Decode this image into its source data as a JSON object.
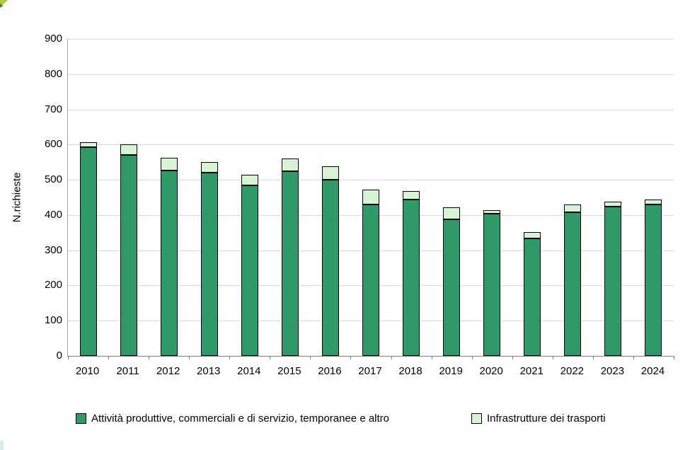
{
  "chart_data": {
    "type": "bar",
    "stacked": true,
    "title": "",
    "ylabel": "N.richieste",
    "xlabel": "",
    "ylim": [
      0,
      900
    ],
    "ytick_step": 100,
    "yticks": [
      "900",
      "800",
      "700",
      "600",
      "500",
      "400",
      "300",
      "200",
      "100",
      "0"
    ],
    "grid": "horizontal",
    "legend_position": "bottom",
    "categories": [
      "2010",
      "2011",
      "2012",
      "2013",
      "2014",
      "2015",
      "2016",
      "2017",
      "2018",
      "2019",
      "2020",
      "2021",
      "2022",
      "2023",
      "2024"
    ],
    "series": [
      {
        "name": "Attività produttive, commerciali e di servizio, temporanee e altro",
        "color": "#2f9968",
        "values": [
          593,
          571,
          527,
          521,
          484,
          525,
          500,
          430,
          443,
          388,
          403,
          333,
          407,
          424,
          429
        ]
      },
      {
        "name": "Infrastrutture dei trasporti",
        "color": "#d8f3d4",
        "values": [
          15,
          31,
          36,
          31,
          30,
          37,
          39,
          43,
          25,
          35,
          11,
          19,
          23,
          14,
          14
        ]
      }
    ]
  },
  "decorations": {
    "corner_leaf_light": "#aecb3c",
    "corner_leaf_dark": "#4e8b2e",
    "bottom_left_mark": "#d8ecec"
  }
}
